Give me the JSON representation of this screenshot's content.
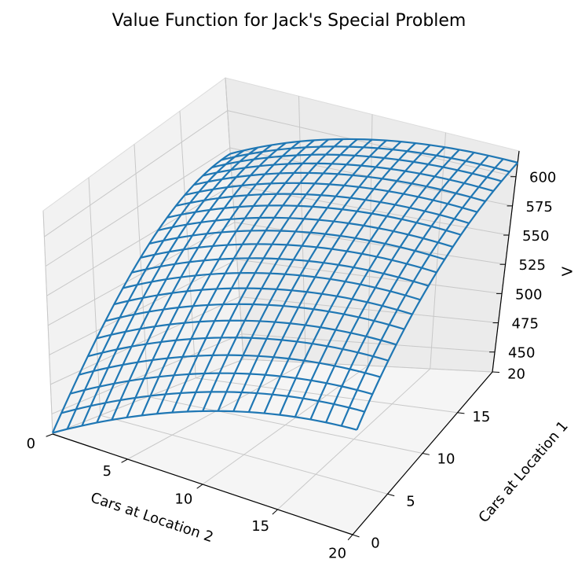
{
  "chart_data": {
    "type": "surface-wireframe",
    "title": "Value Function for Jack's Special Problem",
    "xlabel": "Cars at Location 2",
    "ylabel": "Cars at Location 1",
    "zlabel": "V",
    "x_range": [
      0,
      20
    ],
    "y_range": [
      0,
      20
    ],
    "zlim": [
      433,
      622
    ],
    "x_ticks": [
      "0",
      "5",
      "10",
      "15",
      "20"
    ],
    "y_ticks": [
      "0",
      "5",
      "10",
      "15",
      "20"
    ],
    "z_ticks": [
      "450",
      "475",
      "500",
      "525",
      "550",
      "575",
      "600"
    ],
    "grid": true,
    "line_color": "#1f77b4",
    "surface_corner_values": {
      "loc1_0_loc2_0": 434,
      "loc1_0_loc2_20": 511,
      "loc1_20_loc2_0": 571,
      "loc1_20_loc2_20": 612
    },
    "surface_edge_midpoints": {
      "loc1_0_loc2_10": 491,
      "loc1_20_loc2_10": 603,
      "loc1_10_loc2_0": 537,
      "loc1_10_loc2_20": 577
    }
  }
}
